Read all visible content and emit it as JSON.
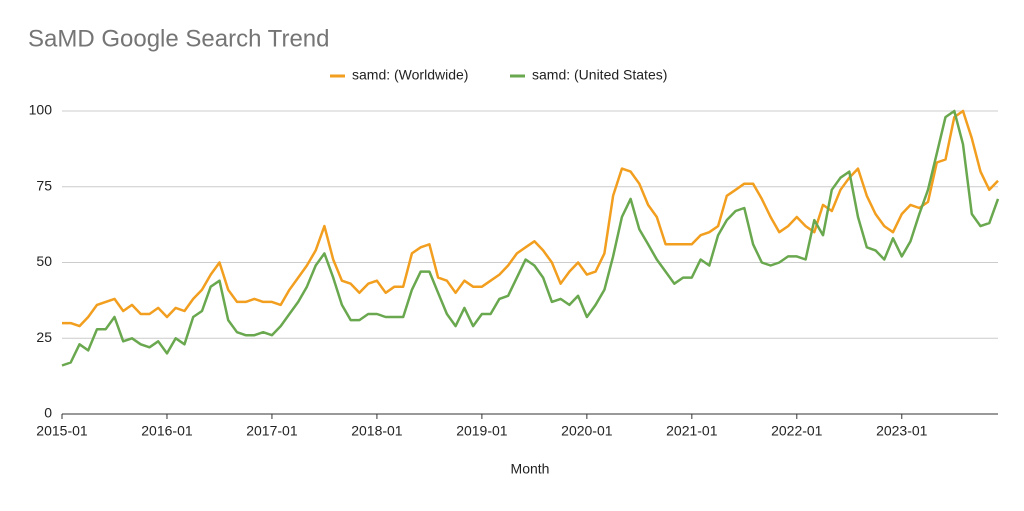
{
  "chart_data": {
    "type": "line",
    "title": "SaMD Google Search Trend",
    "x_label": "Month",
    "categories": [
      "2015-01",
      null,
      null,
      null,
      null,
      null,
      null,
      null,
      null,
      null,
      null,
      null,
      "2016-01",
      null,
      null,
      null,
      null,
      null,
      null,
      null,
      null,
      null,
      null,
      null,
      "2017-01",
      null,
      null,
      null,
      null,
      null,
      null,
      null,
      null,
      null,
      null,
      null,
      "2018-01",
      null,
      null,
      null,
      null,
      null,
      null,
      null,
      null,
      null,
      null,
      null,
      "2019-01",
      null,
      null,
      null,
      null,
      null,
      null,
      null,
      null,
      null,
      null,
      null,
      "2020-01",
      null,
      null,
      null,
      null,
      null,
      null,
      null,
      null,
      null,
      null,
      null,
      "2021-01",
      null,
      null,
      null,
      null,
      null,
      null,
      null,
      null,
      null,
      null,
      null,
      "2022-01",
      null,
      null,
      null,
      null,
      null,
      null,
      null,
      null,
      null,
      null,
      null,
      "2023-01",
      null,
      null,
      null,
      null,
      null,
      null,
      null,
      null,
      null,
      null,
      null
    ],
    "series": [
      {
        "name": "samd: (Worldwide)",
        "color": "#f29e1f",
        "values": [
          30,
          30,
          29,
          32,
          36,
          37,
          38,
          34,
          36,
          33,
          33,
          35,
          32,
          35,
          34,
          38,
          41,
          46,
          50,
          41,
          37,
          37,
          38,
          37,
          37,
          36,
          41,
          45,
          49,
          54,
          62,
          51,
          44,
          43,
          40,
          43,
          44,
          40,
          42,
          42,
          53,
          55,
          56,
          45,
          44,
          40,
          44,
          42,
          42,
          44,
          46,
          49,
          53,
          55,
          57,
          54,
          50,
          43,
          47,
          50,
          46,
          47,
          53,
          72,
          81,
          80,
          76,
          69,
          65,
          56,
          56,
          56,
          56,
          59,
          60,
          62,
          72,
          74,
          76,
          76,
          71,
          65,
          60,
          62,
          65,
          62,
          60,
          69,
          67,
          74,
          78,
          81,
          72,
          66,
          62,
          60,
          66,
          69,
          68,
          70,
          83,
          84,
          98,
          100,
          91,
          80,
          74,
          77
        ]
      },
      {
        "name": "samd: (United States)",
        "color": "#6aa84f",
        "values": [
          16,
          17,
          23,
          21,
          28,
          28,
          32,
          24,
          25,
          23,
          22,
          24,
          20,
          25,
          23,
          32,
          34,
          42,
          44,
          31,
          27,
          26,
          26,
          27,
          26,
          29,
          33,
          37,
          42,
          49,
          53,
          45,
          36,
          31,
          31,
          33,
          33,
          32,
          32,
          32,
          41,
          47,
          47,
          40,
          33,
          29,
          35,
          29,
          33,
          33,
          38,
          39,
          45,
          51,
          49,
          45,
          37,
          38,
          36,
          39,
          32,
          36,
          41,
          52,
          65,
          71,
          61,
          56,
          51,
          47,
          43,
          45,
          45,
          51,
          49,
          59,
          64,
          67,
          68,
          56,
          50,
          49,
          50,
          52,
          52,
          51,
          64,
          59,
          74,
          78,
          80,
          65,
          55,
          54,
          51,
          58,
          52,
          57,
          66,
          74,
          86,
          98,
          100,
          89,
          66,
          62,
          63,
          71
        ]
      }
    ],
    "ylim": [
      0,
      100
    ],
    "yticks": [
      0,
      25,
      50,
      75,
      100
    ],
    "grid": true
  }
}
